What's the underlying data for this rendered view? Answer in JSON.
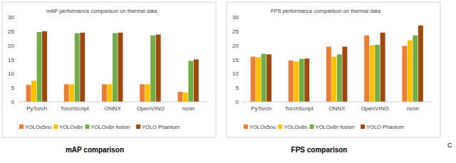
{
  "chart_data": [
    {
      "type": "bar",
      "title": "mAP performance comparison on thermal data",
      "xlabel": "mAP comparison",
      "categories": [
        "PyTorch",
        "TorchScript",
        "ONNX",
        "OpenVINO",
        "ncnn"
      ],
      "series": [
        {
          "name": "YOLOv5nu",
          "color": "#ed7d31",
          "values": [
            6,
            6.2,
            6.2,
            6.2,
            3.5
          ]
        },
        {
          "name": "YOLOv8n",
          "color": "#ffc000",
          "values": [
            7.5,
            6.2,
            6.2,
            6.2,
            3.3
          ]
        },
        {
          "name": "YOLOv8n fusion",
          "color": "#70ad47",
          "values": [
            24.7,
            24.3,
            24.3,
            23.5,
            14.5
          ]
        },
        {
          "name": "YOLO Phantom",
          "color": "#9e480e",
          "values": [
            25,
            24.5,
            24.5,
            23.8,
            15
          ]
        }
      ],
      "ylim": [
        0,
        30
      ],
      "yticks": [
        0,
        5,
        10,
        15,
        20,
        25,
        30
      ],
      "grid": false,
      "legend": "bottom"
    },
    {
      "type": "bar",
      "title": "FPS performance comparison on thermal data",
      "xlabel": "FPS comparison",
      "categories": [
        "PyTorch",
        "TorchScript",
        "ONNX",
        "OpenVINO",
        "ncnn"
      ],
      "series": [
        {
          "name": "YOLOv5nu",
          "color": "#ed7d31",
          "values": [
            16,
            14.6,
            19.5,
            23.5,
            19.8
          ]
        },
        {
          "name": "YOLOv8n",
          "color": "#ffc000",
          "values": [
            15.8,
            14.3,
            16,
            20,
            21.8
          ]
        },
        {
          "name": "YOLOv8n fusion",
          "color": "#70ad47",
          "values": [
            17,
            15.2,
            16.8,
            20.2,
            23.5
          ]
        },
        {
          "name": "YOLO Phantom",
          "color": "#9e480e",
          "values": [
            16.8,
            15.3,
            19.5,
            24.5,
            27
          ]
        }
      ],
      "ylim": [
        0,
        30
      ],
      "yticks": [
        0,
        5,
        10,
        15,
        20,
        25,
        30
      ],
      "grid": false,
      "legend": "bottom",
      "annotations": [
        "C"
      ]
    }
  ]
}
